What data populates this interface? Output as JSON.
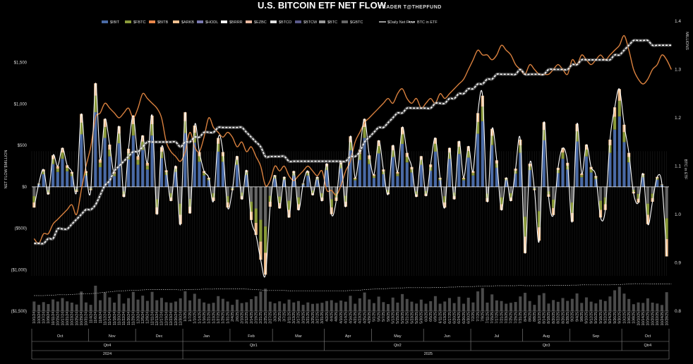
{
  "chart_data": {
    "type": "bar",
    "title": "U.S. BITCOIN ETF NET FLOW",
    "subtitle": "TRADER T@THEPFUND",
    "ylabel": "NET FLOW $MILLION",
    "y2label": "BTC in ETF",
    "y2units": "MILLIONS",
    "ylim": [
      -1500,
      2000
    ],
    "y2lim": [
      0.8,
      1.4
    ],
    "y_ticks": [
      {
        "v": 1500,
        "label": "$1,500",
        "neg": false
      },
      {
        "v": 1000,
        "label": "$1,000",
        "neg": false
      },
      {
        "v": 500,
        "label": "$500",
        "neg": false
      },
      {
        "v": 0,
        "label": "$0",
        "neg": false
      },
      {
        "v": -500,
        "label": "($500)",
        "neg": true
      },
      {
        "v": -1000,
        "label": "($1,000)",
        "neg": true
      },
      {
        "v": -1500,
        "label": "($1,500)",
        "neg": true
      }
    ],
    "y2_ticks": [
      {
        "v": 1.4,
        "label": "1.4"
      },
      {
        "v": 1.3,
        "label": "1.3"
      },
      {
        "v": 1.2,
        "label": "1.2"
      },
      {
        "v": 1.1,
        "label": "1.1"
      },
      {
        "v": 1.0,
        "label": "1.0"
      },
      {
        "v": 0.9,
        "label": "0.9"
      },
      {
        "v": 0.8,
        "label": "0.8"
      }
    ],
    "legend": [
      {
        "name": "$IBIT",
        "color": "#4a6aa5",
        "kind": "bar"
      },
      {
        "name": "$FBTC",
        "color": "#8a9a3a",
        "kind": "bar"
      },
      {
        "name": "$BITB",
        "color": "#e8864a",
        "kind": "bar"
      },
      {
        "name": "$ARKB",
        "color": "#f0c090",
        "kind": "bar"
      },
      {
        "name": "$HODL",
        "color": "#7a7ab0",
        "kind": "bar"
      },
      {
        "name": "$BRRR",
        "color": "#f4f4f4",
        "kind": "bar"
      },
      {
        "name": "$EZBC",
        "color": "#e8b8a0",
        "kind": "bar"
      },
      {
        "name": "$BTCO",
        "color": "#e0e0e0",
        "kind": "bar"
      },
      {
        "name": "$BTCW",
        "color": "#5a5a8a",
        "kind": "bar"
      },
      {
        "name": "$BTC",
        "color": "#999999",
        "kind": "bar"
      },
      {
        "name": "$GBTC",
        "color": "#666666",
        "kind": "bar"
      },
      {
        "name": "$Daily Net Flow",
        "color": "#ffffff",
        "kind": "line"
      },
      {
        "name": "BTC in ETF",
        "color": "#ffffff",
        "kind": "dash"
      }
    ],
    "x_dates": [
      "10/1/24",
      "10/3/24",
      "10/7/24",
      "10/9/24",
      "10/11/24",
      "10/15/24",
      "10/17/24",
      "10/21/24",
      "10/23/24",
      "10/25/24",
      "10/29/24",
      "10/31/24",
      "11/4/24",
      "11/6/24",
      "11/8/24",
      "11/12/24",
      "11/14/24",
      "11/18/24",
      "11/20/24",
      "11/22/24",
      "11/26/24",
      "11/29/24",
      "12/3/24",
      "12/5/24",
      "12/9/24",
      "12/11/24",
      "12/13/24",
      "12/17/24",
      "12/19/24",
      "12/23/24",
      "12/26/24",
      "12/30/24",
      "1/3/25",
      "1/7/25",
      "1/10/25",
      "1/14/25",
      "1/16/25",
      "1/21/25",
      "1/23/25",
      "1/27/25",
      "1/29/25",
      "1/31/25",
      "2/4/25",
      "2/6/25",
      "2/10/25",
      "2/12/25",
      "2/14/25",
      "2/19/25",
      "2/21/25",
      "2/25/25",
      "2/27/25",
      "3/3/25",
      "3/5/25",
      "3/7/25",
      "3/11/25",
      "3/13/25",
      "3/17/25",
      "3/19/25",
      "3/21/25",
      "3/25/25",
      "3/27/25",
      "3/31/25",
      "4/2/25",
      "4/4/25",
      "4/8/25",
      "4/10/25",
      "4/14/25",
      "4/16/25",
      "4/21/25",
      "4/23/25",
      "4/25/25",
      "4/29/25",
      "5/1/25",
      "5/5/25",
      "5/7/25",
      "5/9/25",
      "5/13/25",
      "5/15/25",
      "5/19/25",
      "5/21/25",
      "5/23/25",
      "5/28/25",
      "5/30/25",
      "6/3/25",
      "6/5/25",
      "6/9/25",
      "6/11/25",
      "6/13/25",
      "6/17/25",
      "6/20/25",
      "6/24/25",
      "6/26/25",
      "6/30/25",
      "7/2/25",
      "7/7/25",
      "7/9/25",
      "7/11/25",
      "7/15/25",
      "7/17/25",
      "7/21/25",
      "7/23/25",
      "7/25/25",
      "7/29/25",
      "7/31/25",
      "8/4/25",
      "8/6/25",
      "8/8/25",
      "8/12/25",
      "8/14/25",
      "8/18/25",
      "8/20/25",
      "8/22/25",
      "8/26/25",
      "8/28/25",
      "9/2/25",
      "9/4/25",
      "9/8/25",
      "9/10/25",
      "9/12/25",
      "9/16/25",
      "9/18/25",
      "9/22/25",
      "9/24/25",
      "9/26/25",
      "9/30/25",
      "10/2/25",
      "10/6/25",
      "10/8/25",
      "10/10/25",
      "10/14/25",
      "10/16/25",
      "10/20/25",
      "10/22/25",
      "10/24/25",
      "10/28/25"
    ],
    "months": [
      {
        "label": "Oct",
        "start": 0,
        "end": 12
      },
      {
        "label": "Nov",
        "start": 12,
        "end": 22
      },
      {
        "label": "Dec",
        "start": 22,
        "end": 32
      },
      {
        "label": "Jan",
        "start": 32,
        "end": 42
      },
      {
        "label": "Feb",
        "start": 42,
        "end": 51
      },
      {
        "label": "Mar",
        "start": 51,
        "end": 62
      },
      {
        "label": "Apr",
        "start": 62,
        "end": 72
      },
      {
        "label": "May",
        "start": 72,
        "end": 83
      },
      {
        "label": "Jun",
        "start": 83,
        "end": 93
      },
      {
        "label": "Jul",
        "start": 93,
        "end": 104
      },
      {
        "label": "Aug",
        "start": 104,
        "end": 114
      },
      {
        "label": "Sep",
        "start": 114,
        "end": 125
      },
      {
        "label": "Oct",
        "start": 125,
        "end": 136
      }
    ],
    "quarters": [
      {
        "label": "Qtr4",
        "start": 0,
        "end": 32
      },
      {
        "label": "Qtr1",
        "start": 32,
        "end": 62
      },
      {
        "label": "Qtr2",
        "start": 62,
        "end": 93
      },
      {
        "label": "Qtr3",
        "start": 93,
        "end": 125
      },
      {
        "label": "Qtr4",
        "start": 125,
        "end": 136
      }
    ],
    "years": [
      {
        "label": "2024",
        "start": 0,
        "end": 32
      },
      {
        "label": "2025",
        "start": 32,
        "end": 136
      }
    ],
    "daily_net_flow": [
      -250,
      40,
      210,
      -90,
      380,
      250,
      470,
      260,
      180,
      -60,
      880,
      190,
      -40,
      1250,
      330,
      820,
      510,
      180,
      730,
      -120,
      460,
      860,
      370,
      620,
      290,
      860,
      -330,
      480,
      200,
      -170,
      250,
      -450,
      900,
      -320,
      740,
      420,
      190,
      110,
      -170,
      590,
      420,
      -250,
      -40,
      370,
      -150,
      200,
      -400,
      -580,
      -880,
      -1060,
      -240,
      140,
      -260,
      120,
      -370,
      190,
      -280,
      40,
      190,
      -100,
      120,
      -170,
      280,
      -330,
      -170,
      310,
      -240,
      610,
      110,
      450,
      820,
      380,
      150,
      560,
      210,
      -90,
      500,
      180,
      720,
      410,
      240,
      -120,
      370,
      -110,
      270,
      590,
      110,
      -250,
      470,
      -150,
      550,
      110,
      490,
      190,
      890,
      1100,
      -180,
      700,
      320,
      -280,
      110,
      -170,
      220,
      570,
      -800,
      280,
      -40,
      -650,
      780,
      -120,
      -340,
      230,
      470,
      290,
      -420,
      760,
      160,
      510,
      240,
      130,
      -370,
      -280,
      570,
      960,
      1180,
      750,
      410,
      -80,
      -190,
      160,
      -450,
      -180,
      120,
      30,
      -840
    ],
    "btc_in_etf": [
      0.94,
      0.94,
      0.94,
      0.95,
      0.95,
      0.97,
      0.97,
      0.97,
      0.98,
      0.99,
      1.0,
      1.01,
      1.01,
      1.02,
      1.04,
      1.06,
      1.07,
      1.09,
      1.1,
      1.11,
      1.12,
      1.13,
      1.13,
      1.14,
      1.15,
      1.15,
      1.15,
      1.15,
      1.15,
      1.15,
      1.15,
      1.14,
      1.15,
      1.15,
      1.16,
      1.16,
      1.17,
      1.17,
      1.17,
      1.18,
      1.18,
      1.18,
      1.18,
      1.18,
      1.18,
      1.17,
      1.16,
      1.15,
      1.14,
      1.12,
      1.12,
      1.12,
      1.12,
      1.12,
      1.11,
      1.11,
      1.11,
      1.11,
      1.11,
      1.11,
      1.11,
      1.11,
      1.11,
      1.11,
      1.11,
      1.11,
      1.11,
      1.12,
      1.12,
      1.13,
      1.15,
      1.16,
      1.17,
      1.18,
      1.18,
      1.19,
      1.2,
      1.21,
      1.21,
      1.22,
      1.22,
      1.22,
      1.22,
      1.22,
      1.22,
      1.23,
      1.23,
      1.23,
      1.24,
      1.24,
      1.25,
      1.25,
      1.26,
      1.26,
      1.27,
      1.27,
      1.28,
      1.28,
      1.29,
      1.29,
      1.29,
      1.29,
      1.29,
      1.3,
      1.29,
      1.29,
      1.29,
      1.29,
      1.29,
      1.3,
      1.3,
      1.3,
      1.3,
      1.3,
      1.31,
      1.31,
      1.32,
      1.32,
      1.32,
      1.32,
      1.32,
      1.32,
      1.32,
      1.33,
      1.33,
      1.34,
      1.35,
      1.36,
      1.36,
      1.36,
      1.36,
      1.35,
      1.35,
      1.35,
      1.35,
      1.35
    ],
    "btc_price_trace": [
      0.95,
      0.94,
      0.96,
      0.96,
      0.98,
      0.99,
      1.0,
      1.01,
      1.02,
      1.0,
      1.05,
      1.1,
      1.14,
      1.2,
      1.21,
      1.23,
      1.22,
      1.21,
      1.2,
      1.21,
      1.22,
      1.2,
      1.22,
      1.25,
      1.24,
      1.23,
      1.22,
      1.2,
      1.15,
      1.13,
      1.12,
      1.11,
      1.13,
      1.17,
      1.14,
      1.13,
      1.16,
      1.2,
      1.18,
      1.17,
      1.16,
      1.17,
      1.16,
      1.14,
      1.15,
      1.13,
      1.14,
      1.12,
      1.1,
      1.06,
      1.07,
      1.1,
      1.09,
      1.1,
      1.08,
      1.07,
      1.08,
      1.09,
      1.1,
      1.09,
      1.08,
      1.09,
      1.05,
      1.05,
      1.04,
      1.06,
      1.09,
      1.11,
      1.15,
      1.17,
      1.19,
      1.2,
      1.21,
      1.22,
      1.23,
      1.24,
      1.23,
      1.25,
      1.26,
      1.24,
      1.23,
      1.24,
      1.22,
      1.23,
      1.24,
      1.23,
      1.25,
      1.24,
      1.25,
      1.26,
      1.27,
      1.28,
      1.3,
      1.32,
      1.34,
      1.33,
      1.33,
      1.32,
      1.33,
      1.35,
      1.34,
      1.33,
      1.31,
      1.3,
      1.29,
      1.31,
      1.3,
      1.29,
      1.29,
      1.29,
      1.3,
      1.31,
      1.3,
      1.29,
      1.32,
      1.31,
      1.33,
      1.32,
      1.31,
      1.32,
      1.33,
      1.32,
      1.33,
      1.34,
      1.35,
      1.37,
      1.34,
      1.3,
      1.28,
      1.27,
      1.28,
      1.3,
      1.31,
      1.33,
      1.32,
      1.3
    ]
  }
}
